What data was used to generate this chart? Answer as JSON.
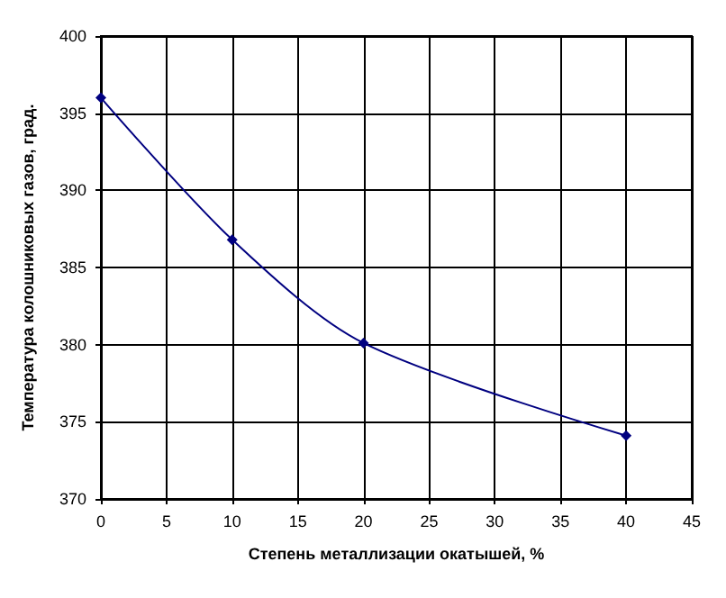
{
  "chart_data": {
    "type": "line",
    "xlabel": "Степень металлизации окатышей, %",
    "ylabel": "Температура колошниковых газов, град.",
    "x": [
      0,
      10,
      20,
      40
    ],
    "series": [
      {
        "color": "#000080",
        "values": [
          396,
          386.8,
          380.1,
          374.1
        ]
      }
    ],
    "xlim": [
      0,
      45
    ],
    "xticks": [
      0,
      5,
      10,
      15,
      20,
      25,
      30,
      35,
      40,
      45
    ],
    "ylim": [
      370,
      400
    ],
    "yticks": [
      370,
      375,
      380,
      385,
      390,
      395,
      400
    ],
    "grid": true,
    "marker": "diamond",
    "line_style": "solid"
  }
}
